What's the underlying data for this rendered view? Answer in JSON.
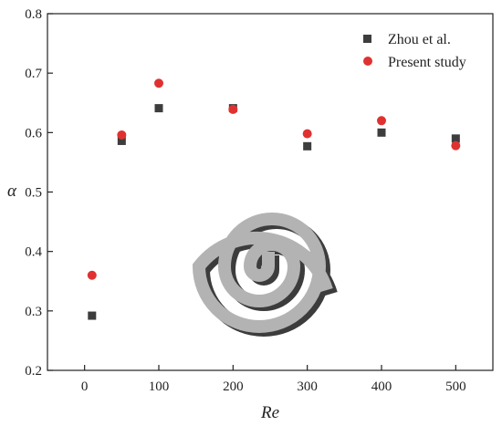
{
  "chart_data": {
    "type": "scatter",
    "xlabel": "Re",
    "ylabel": "α",
    "xlim": [
      -50,
      550
    ],
    "ylim": [
      0.2,
      0.8
    ],
    "x_ticks": [
      0,
      100,
      200,
      300,
      400,
      500
    ],
    "y_ticks": [
      0.2,
      0.3,
      0.4,
      0.5,
      0.6,
      0.7,
      0.8
    ],
    "x_tick_labels": [
      "0",
      "100",
      "200",
      "300",
      "400",
      "500"
    ],
    "y_tick_labels": [
      "0.2",
      "0.3",
      "0.4",
      "0.5",
      "0.6",
      "0.7",
      "0.8"
    ],
    "grid": false,
    "legend_position": "top-right",
    "series": [
      {
        "name": "Zhou et al.",
        "marker": "square",
        "color": "#3d3d3d",
        "x": [
          10,
          50,
          100,
          200,
          300,
          400,
          500
        ],
        "y": [
          0.292,
          0.586,
          0.641,
          0.641,
          0.577,
          0.6,
          0.59
        ]
      },
      {
        "name": "Present study",
        "marker": "circle",
        "color": "#e03131",
        "x": [
          10,
          50,
          100,
          200,
          300,
          400,
          500
        ],
        "y": [
          0.36,
          0.596,
          0.683,
          0.639,
          0.598,
          0.62,
          0.578
        ]
      }
    ],
    "inset": "spiral-channel-illustration"
  }
}
